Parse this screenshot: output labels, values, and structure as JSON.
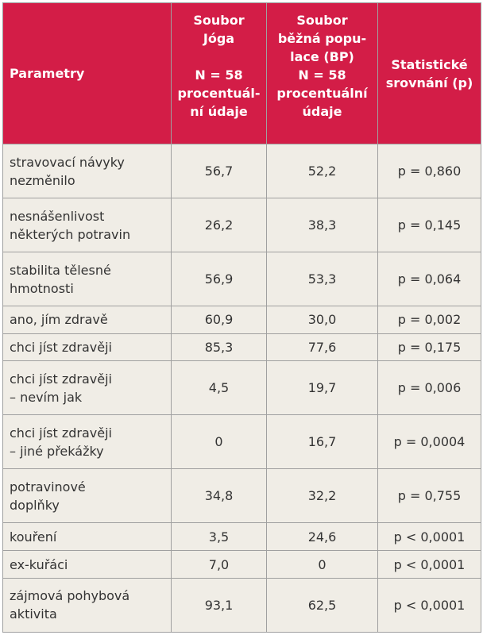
{
  "headers": {
    "param": "Parametry",
    "yoga_l1": "Soubor",
    "yoga_l2": "Jóga",
    "yoga_l3": "N = 58",
    "yoga_l4": "procentuál-",
    "yoga_l5": "ní údaje",
    "bp_l1": "Soubor",
    "bp_l2": "běžná popu-",
    "bp_l3": "lace (BP)",
    "bp_l4": "N = 58",
    "bp_l5": "procentuální",
    "bp_l6": "údaje",
    "stat_l1": "Statistické",
    "stat_l2": "srovnání (p)"
  },
  "rows": [
    {
      "param_l1": "stravovací návyky",
      "param_l2": "nezměnilo",
      "yoga": "56,7",
      "bp": "52,2",
      "p": "p = 0,860"
    },
    {
      "param_l1": "nesnášenlivost",
      "param_l2": "některých potravin",
      "yoga": "26,2",
      "bp": "38,3",
      "p": "p = 0,145"
    },
    {
      "param_l1": "stabilita tělesné",
      "param_l2": "hmotnosti",
      "yoga": "56,9",
      "bp": "53,3",
      "p": "p = 0,064"
    },
    {
      "param_l1": "ano, jím zdravě",
      "param_l2": "",
      "yoga": "60,9",
      "bp": "30,0",
      "p": "p = 0,002"
    },
    {
      "param_l1": "chci jíst zdravěji",
      "param_l2": "",
      "yoga": "85,3",
      "bp": "77,6",
      "p": "p = 0,175"
    },
    {
      "param_l1": "chci jíst zdravěji",
      "param_l2": "– nevím jak",
      "yoga": "4,5",
      "bp": "19,7",
      "p": "p = 0,006"
    },
    {
      "param_l1": "chci jíst zdravěji",
      "param_l2": "– jiné překážky",
      "yoga": "0",
      "bp": "16,7",
      "p": "p = 0,0004"
    },
    {
      "param_l1": "potravinové",
      "param_l2": "doplňky",
      "yoga": "34,8",
      "bp": "32,2",
      "p": "p = 0,755"
    },
    {
      "param_l1": "kouření",
      "param_l2": "",
      "yoga": "3,5",
      "bp": "24,6",
      "p": "p < 0,0001"
    },
    {
      "param_l1": "ex-kuřáci",
      "param_l2": "",
      "yoga": "7,0",
      "bp": "0",
      "p": "p < 0,0001"
    },
    {
      "param_l1": "zájmová pohybová",
      "param_l2": "aktivita",
      "yoga": "93,1",
      "bp": "62,5",
      "p": "p < 0,0001"
    }
  ]
}
